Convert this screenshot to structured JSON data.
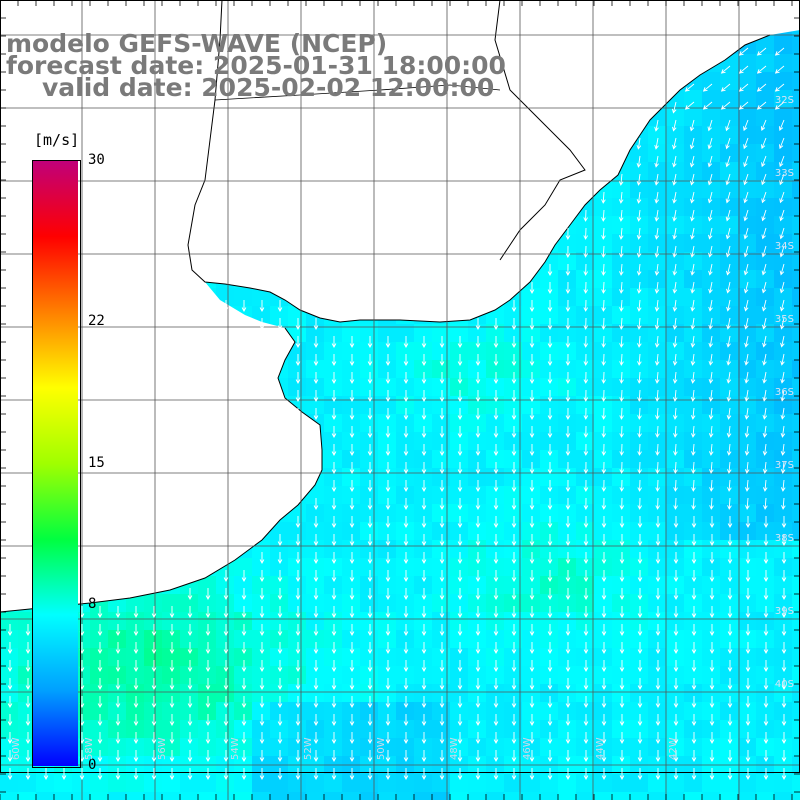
{
  "title": {
    "line1": "modelo GEFS-WAVE (NCEP)",
    "line2": "forecast date: 2025-01-31 18:00:00",
    "line3": "valid date: 2025-02-02 12:00:00"
  },
  "colorbar": {
    "unit": "[m/s]",
    "ticks": [
      "30",
      "22",
      "15",
      "8",
      "0"
    ],
    "tick_values": [
      30,
      22,
      15,
      8,
      0
    ],
    "min": 0,
    "max": 30,
    "stops": [
      "#0000ff",
      "#00a0ff",
      "#00ffff",
      "#00ff40",
      "#a0ff00",
      "#ffff00",
      "#ff8000",
      "#ff0000",
      "#c0007a"
    ]
  },
  "colors": {
    "land": "#ffffff",
    "coast": "#000000",
    "grid": "#555555",
    "arrow": "#ffffff",
    "title": "#7a7a7a"
  },
  "map": {
    "lon_labels": [
      "60W",
      "58W",
      "56W",
      "54W",
      "52W",
      "50W",
      "48W",
      "46W",
      "44W",
      "42W"
    ],
    "lat_labels": [
      "32S",
      "33S",
      "34S",
      "35S",
      "36S",
      "37S",
      "38S",
      "39S",
      "40S"
    ],
    "wind_direction": "north-to-south"
  }
}
